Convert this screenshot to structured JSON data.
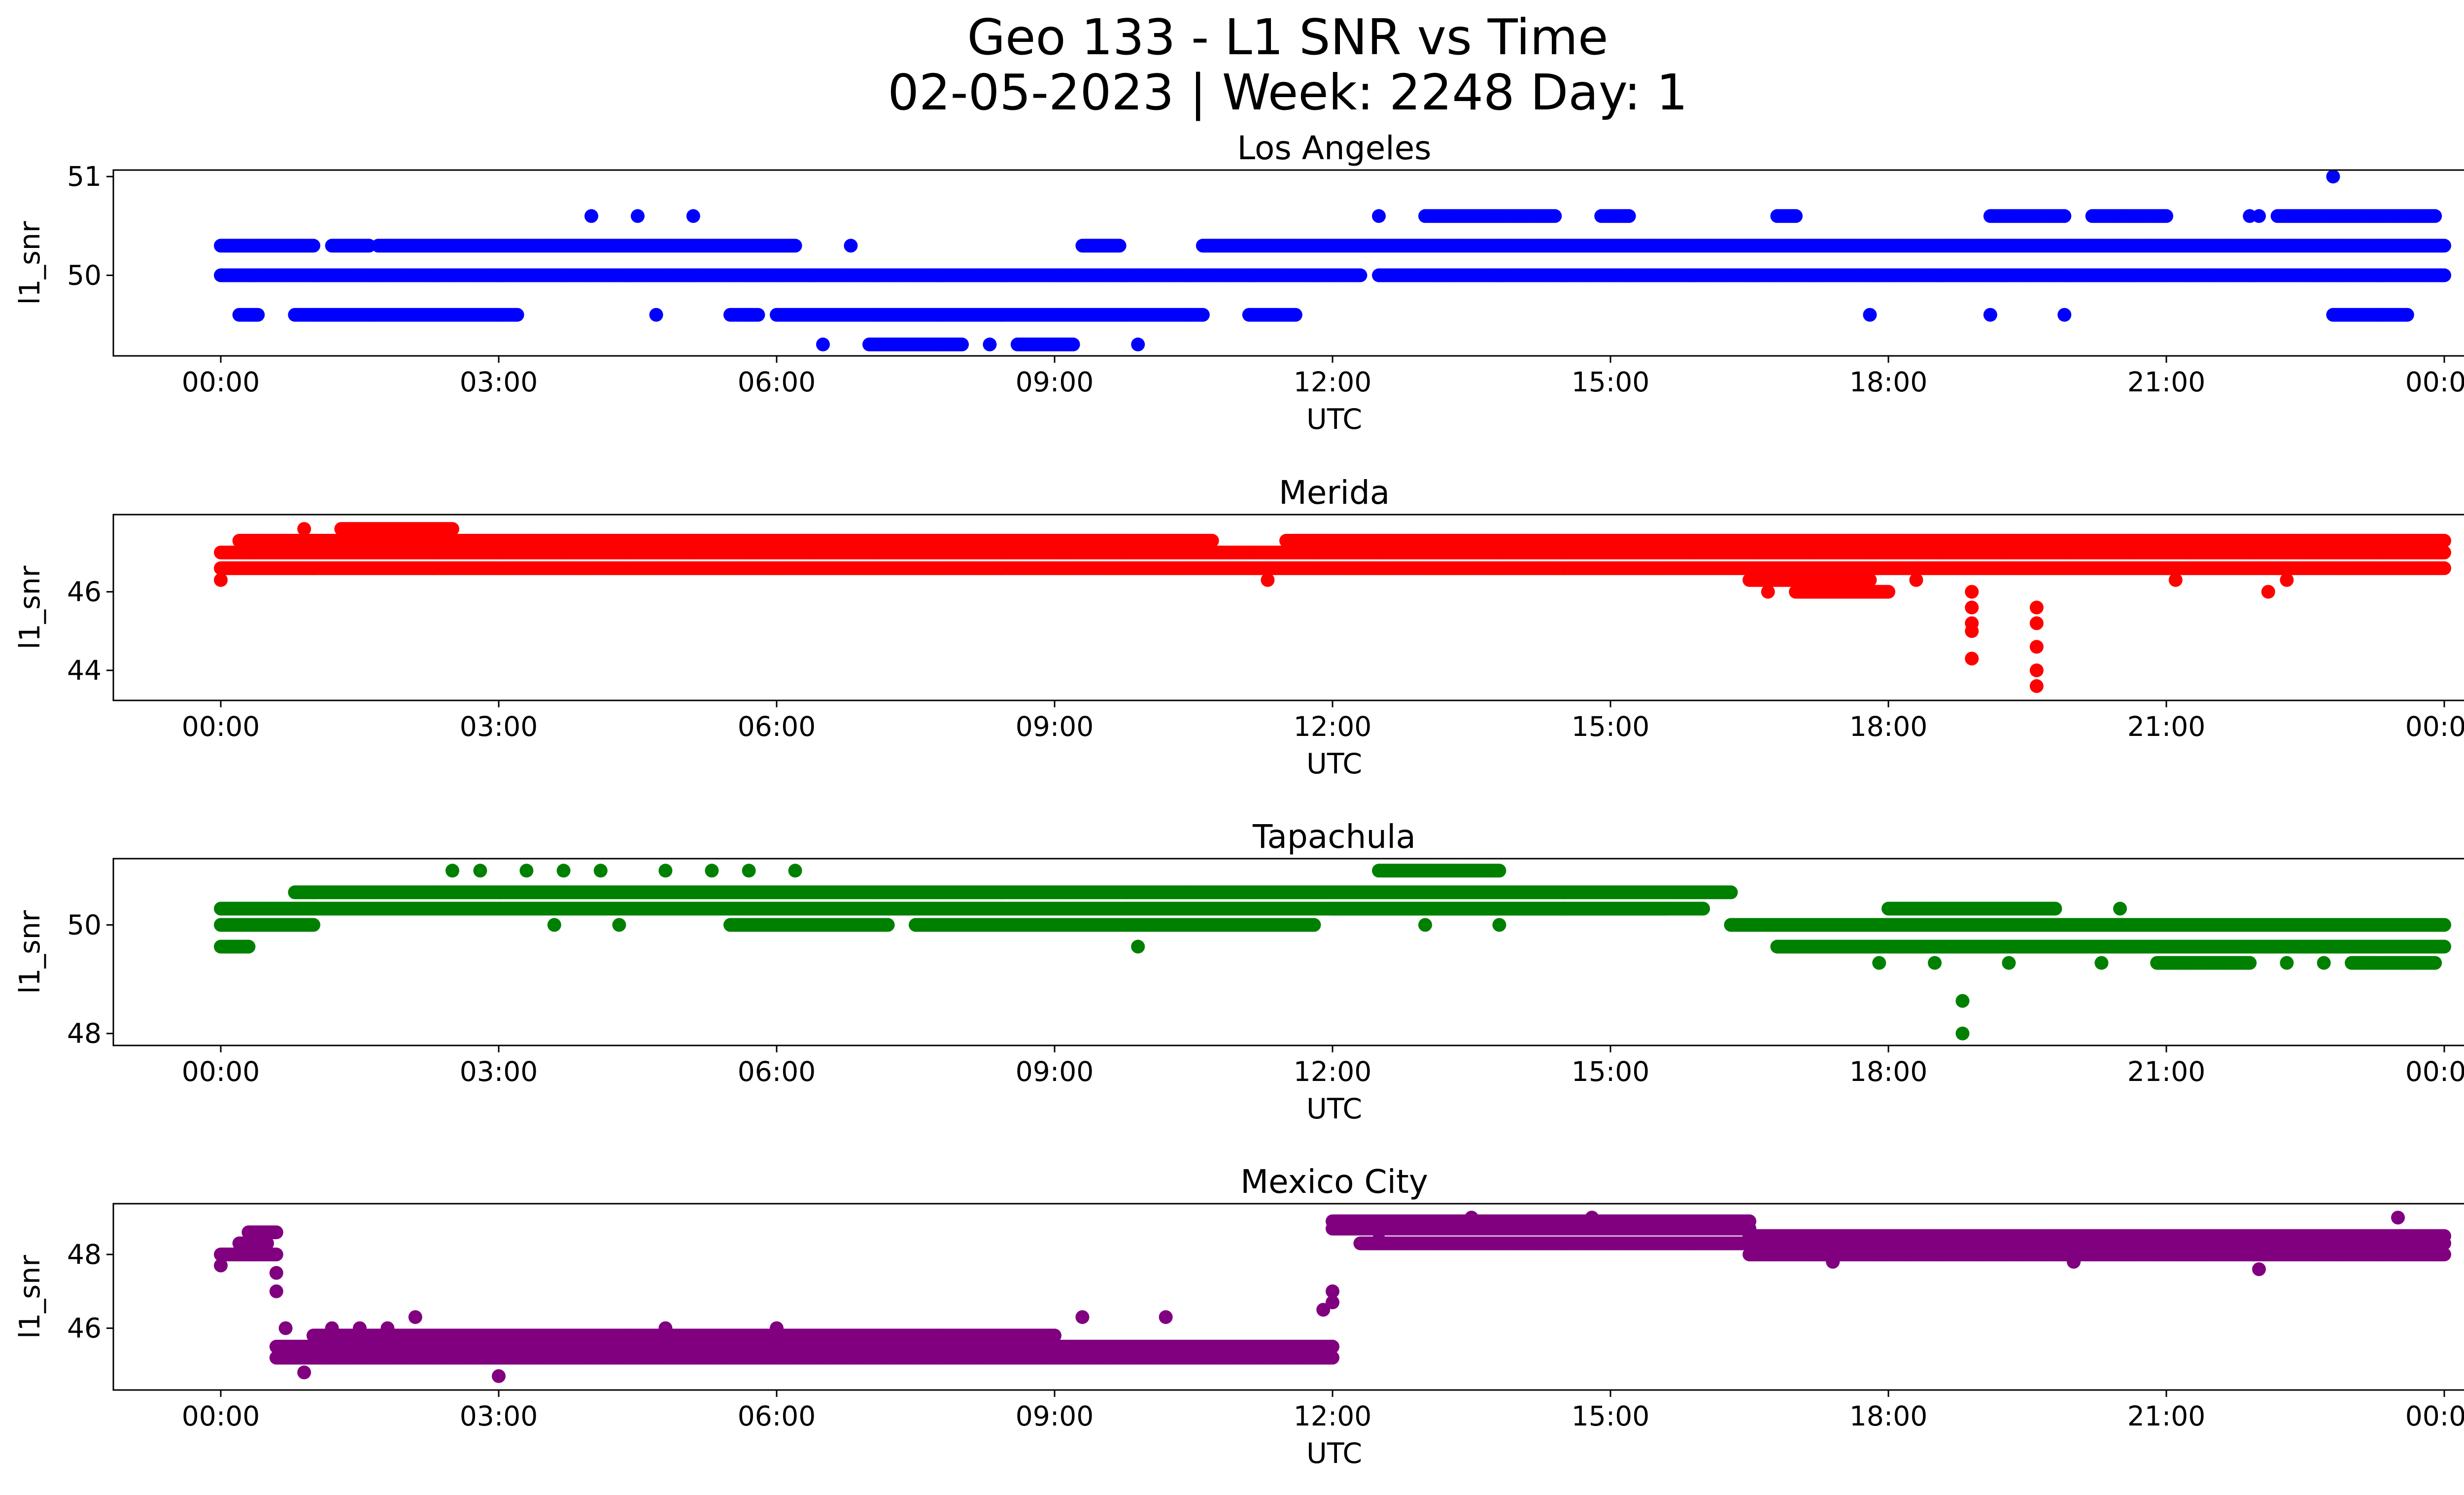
{
  "figure": {
    "title_line1": "Geo 133 - L1 SNR vs Time",
    "title_line2": "02-05-2023 | Week: 2248 Day: 1"
  },
  "chart_data": [
    {
      "type": "scatter",
      "title": "Los Angeles",
      "xlabel": "UTC",
      "ylabel": "l1_snr",
      "color": "#0000ff",
      "x_unit": "hours since 00:00 UTC",
      "xticks": [
        "00:00",
        "03:00",
        "06:00",
        "09:00",
        "12:00",
        "15:00",
        "18:00",
        "21:00",
        "00:00"
      ],
      "ylim": [
        49.25,
        51.0
      ],
      "yticks": [
        "50",
        "51"
      ],
      "segments": [
        [
          0.0,
          1.0,
          50.3
        ],
        [
          0.0,
          12.3,
          50.0
        ],
        [
          1.2,
          1.6,
          50.3
        ],
        [
          1.7,
          6.2,
          50.3
        ],
        [
          0.8,
          3.2,
          49.6
        ],
        [
          0.2,
          0.4,
          49.6
        ],
        [
          5.5,
          5.8,
          49.6
        ],
        [
          6.0,
          10.6,
          49.6
        ],
        [
          10.6,
          24.0,
          50.3
        ],
        [
          12.5,
          24.0,
          50.0
        ],
        [
          7.0,
          8.0,
          49.3
        ],
        [
          8.6,
          9.2,
          49.3
        ],
        [
          13.0,
          14.4,
          50.6
        ],
        [
          19.1,
          19.9,
          50.6
        ],
        [
          22.2,
          23.9,
          50.6
        ],
        [
          22.8,
          23.6,
          49.6
        ],
        [
          9.3,
          9.7,
          50.3
        ],
        [
          11.1,
          11.6,
          49.6
        ],
        [
          20.2,
          21.0,
          50.6
        ],
        [
          14.9,
          15.2,
          50.6
        ],
        [
          16.8,
          17.0,
          50.6
        ]
      ],
      "points": [
        [
          4.0,
          50.6
        ],
        [
          4.5,
          50.6
        ],
        [
          5.1,
          50.6
        ],
        [
          4.7,
          49.6
        ],
        [
          6.5,
          49.3
        ],
        [
          6.8,
          50.3
        ],
        [
          9.9,
          49.3
        ],
        [
          12.5,
          50.6
        ],
        [
          17.8,
          49.6
        ],
        [
          19.1,
          49.6
        ],
        [
          19.9,
          49.6
        ],
        [
          21.9,
          50.6
        ],
        [
          22.0,
          50.6
        ],
        [
          22.8,
          51.0
        ],
        [
          8.3,
          49.3
        ]
      ]
    },
    {
      "type": "scatter",
      "title": "Merida",
      "xlabel": "UTC",
      "ylabel": "l1_snr",
      "color": "#ff0000",
      "x_unit": "hours since 00:00 UTC",
      "xticks": [
        "00:00",
        "03:00",
        "06:00",
        "09:00",
        "12:00",
        "15:00",
        "18:00",
        "21:00",
        "00:00"
      ],
      "ylim": [
        43.4,
        47.8
      ],
      "yticks": [
        "44",
        "46"
      ],
      "segments": [
        [
          0.0,
          24.0,
          47.0
        ],
        [
          0.0,
          24.0,
          46.6
        ],
        [
          0.2,
          2.5,
          47.3
        ],
        [
          2.5,
          10.7,
          47.3
        ],
        [
          1.3,
          2.5,
          47.6
        ],
        [
          11.5,
          24.0,
          47.3
        ],
        [
          16.5,
          17.6,
          46.3
        ],
        [
          17.0,
          18.0,
          46.0
        ],
        [
          17.2,
          17.8,
          46.3
        ],
        [
          22.5,
          23.4,
          47.3
        ]
      ],
      "points": [
        [
          0.0,
          46.3
        ],
        [
          0.9,
          47.6
        ],
        [
          2.3,
          46.6
        ],
        [
          11.3,
          46.3
        ],
        [
          16.7,
          46.0
        ],
        [
          18.3,
          46.3
        ],
        [
          18.9,
          46.0
        ],
        [
          18.9,
          45.6
        ],
        [
          18.9,
          45.2
        ],
        [
          18.9,
          44.3
        ],
        [
          18.9,
          45.0
        ],
        [
          19.6,
          45.6
        ],
        [
          19.6,
          45.2
        ],
        [
          19.6,
          44.6
        ],
        [
          19.6,
          44.0
        ],
        [
          19.6,
          43.6
        ],
        [
          21.1,
          46.3
        ],
        [
          22.1,
          46.0
        ],
        [
          22.3,
          46.3
        ]
      ]
    },
    {
      "type": "scatter",
      "title": "Tapachula",
      "xlabel": "UTC",
      "ylabel": "l1_snr",
      "color": "#008000",
      "x_unit": "hours since 00:00 UTC",
      "xticks": [
        "00:00",
        "03:00",
        "06:00",
        "09:00",
        "12:00",
        "15:00",
        "18:00",
        "21:00",
        "00:00"
      ],
      "ylim": [
        47.9,
        51.1
      ],
      "yticks": [
        "48",
        "50"
      ],
      "segments": [
        [
          0.0,
          16.0,
          50.3
        ],
        [
          0.0,
          1.0,
          50.0
        ],
        [
          0.8,
          16.3,
          50.6
        ],
        [
          5.5,
          7.2,
          50.0
        ],
        [
          7.5,
          11.8,
          50.0
        ],
        [
          12.0,
          15.6,
          50.3
        ],
        [
          12.5,
          13.8,
          51.0
        ],
        [
          16.3,
          24.0,
          50.0
        ],
        [
          16.8,
          24.0,
          49.6
        ],
        [
          18.0,
          19.8,
          50.3
        ],
        [
          20.9,
          21.9,
          49.3
        ],
        [
          23.0,
          23.9,
          49.3
        ],
        [
          0.0,
          0.3,
          49.6
        ]
      ],
      "points": [
        [
          2.5,
          51.0
        ],
        [
          2.8,
          51.0
        ],
        [
          3.3,
          51.0
        ],
        [
          3.7,
          51.0
        ],
        [
          4.1,
          51.0
        ],
        [
          4.8,
          51.0
        ],
        [
          5.3,
          51.0
        ],
        [
          5.7,
          51.0
        ],
        [
          6.2,
          51.0
        ],
        [
          3.6,
          50.0
        ],
        [
          4.3,
          50.0
        ],
        [
          9.9,
          49.6
        ],
        [
          13.0,
          50.0
        ],
        [
          13.8,
          50.0
        ],
        [
          17.9,
          49.3
        ],
        [
          18.5,
          49.3
        ],
        [
          18.8,
          48.6
        ],
        [
          18.8,
          48.0
        ],
        [
          19.3,
          49.3
        ],
        [
          20.3,
          49.3
        ],
        [
          20.5,
          50.3
        ],
        [
          22.3,
          49.3
        ],
        [
          22.7,
          49.3
        ]
      ]
    },
    {
      "type": "scatter",
      "title": "Mexico City",
      "xlabel": "UTC",
      "ylabel": "l1_snr",
      "color": "#800080",
      "x_unit": "hours since 00:00 UTC",
      "xticks": [
        "00:00",
        "03:00",
        "06:00",
        "09:00",
        "12:00",
        "15:00",
        "18:00",
        "21:00",
        "00:00"
      ],
      "ylim": [
        44.5,
        49.2
      ],
      "yticks": [
        "46",
        "48"
      ],
      "segments": [
        [
          0.0,
          0.6,
          48.0
        ],
        [
          0.2,
          0.5,
          48.3
        ],
        [
          0.3,
          0.6,
          48.6
        ],
        [
          0.6,
          12.0,
          45.2
        ],
        [
          0.6,
          12.0,
          45.5
        ],
        [
          1.0,
          9.0,
          45.8
        ],
        [
          12.0,
          16.5,
          48.7
        ],
        [
          12.0,
          16.5,
          48.9
        ],
        [
          12.3,
          24.0,
          48.3
        ],
        [
          16.5,
          24.0,
          48.0
        ],
        [
          16.5,
          24.0,
          48.5
        ]
      ],
      "points": [
        [
          0.0,
          47.7
        ],
        [
          0.6,
          47.5
        ],
        [
          0.6,
          47.0
        ],
        [
          0.7,
          46.0
        ],
        [
          0.9,
          44.8
        ],
        [
          1.2,
          46.0
        ],
        [
          1.5,
          46.0
        ],
        [
          1.8,
          46.0
        ],
        [
          2.1,
          46.3
        ],
        [
          3.0,
          44.7
        ],
        [
          4.8,
          46.0
        ],
        [
          6.0,
          46.0
        ],
        [
          9.3,
          46.3
        ],
        [
          10.2,
          46.3
        ],
        [
          11.9,
          46.5
        ],
        [
          12.0,
          47.0
        ],
        [
          12.0,
          46.7
        ],
        [
          12.5,
          48.4
        ],
        [
          13.5,
          49.0
        ],
        [
          14.8,
          49.0
        ],
        [
          22.0,
          47.6
        ],
        [
          23.5,
          49.0
        ],
        [
          17.4,
          47.8
        ],
        [
          20.0,
          47.8
        ]
      ]
    }
  ]
}
